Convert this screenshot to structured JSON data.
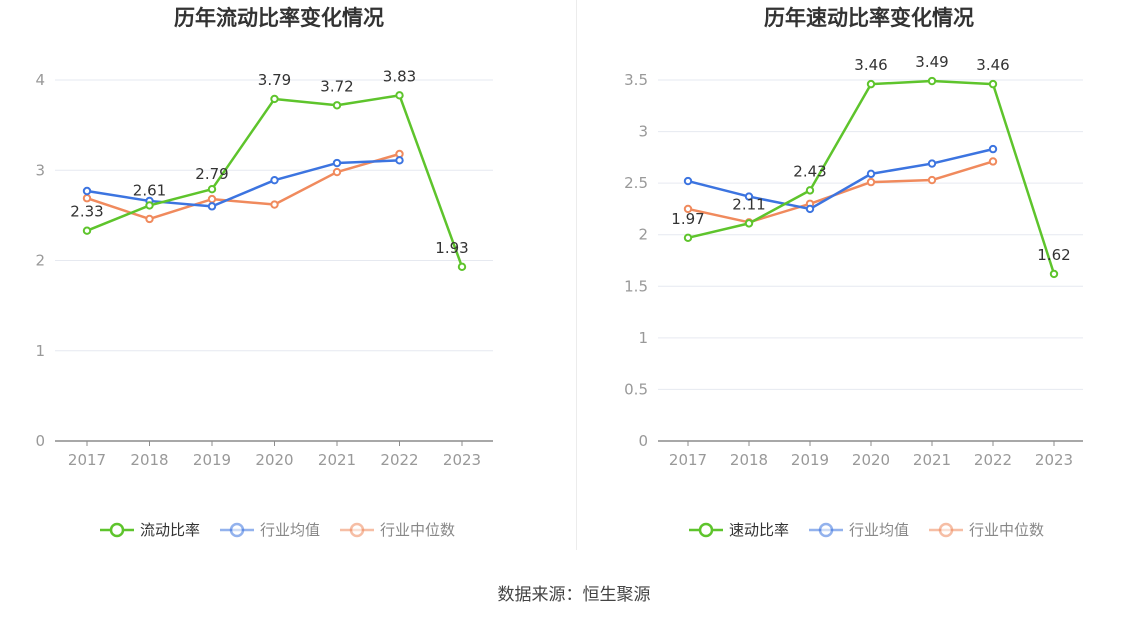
{
  "source": "数据来源：恒生聚源",
  "colors": {
    "main": "#5ec42c",
    "avg": "#3c74e0",
    "median": "#f08a5d",
    "grid": "#e6e9f0",
    "axis": "#8c8c8c",
    "tick": "#999999",
    "label": "#333333"
  },
  "chart_data": [
    {
      "type": "line",
      "title": "历年流动比率变化情况",
      "categories": [
        "2017",
        "2018",
        "2019",
        "2020",
        "2021",
        "2022",
        "2023"
      ],
      "yticks": [
        "0",
        "1",
        "2",
        "3",
        "4"
      ],
      "ylim": [
        0,
        4
      ],
      "grid": true,
      "legend_position": "bottom",
      "series": [
        {
          "name": "流动比率",
          "values": [
            2.33,
            2.61,
            2.79,
            3.79,
            3.72,
            3.83,
            1.93
          ],
          "labels": [
            "2.33",
            "2.61",
            "2.79",
            "3.79",
            "3.72",
            "3.83",
            "1.93"
          ],
          "color": "#5ec42c",
          "labeled": true
        },
        {
          "name": "行业均值",
          "values": [
            2.77,
            2.66,
            2.6,
            2.89,
            3.08,
            3.11,
            null
          ],
          "color": "#3c74e0",
          "labeled": false
        },
        {
          "name": "行业中位数",
          "values": [
            2.69,
            2.46,
            2.68,
            2.62,
            2.98,
            3.18,
            null
          ],
          "color": "#f08a5d",
          "labeled": false
        }
      ]
    },
    {
      "type": "line",
      "title": "历年速动比率变化情况",
      "categories": [
        "2017",
        "2018",
        "2019",
        "2020",
        "2021",
        "2022",
        "2023"
      ],
      "yticks": [
        "0",
        "0.5",
        "1",
        "1.5",
        "2",
        "2.5",
        "3",
        "3.5"
      ],
      "ylim": [
        0,
        3.5
      ],
      "grid": true,
      "legend_position": "bottom",
      "series": [
        {
          "name": "速动比率",
          "values": [
            1.97,
            2.11,
            2.43,
            3.46,
            3.49,
            3.46,
            1.62
          ],
          "labels": [
            "1.97",
            "2.11",
            "2.43",
            "3.46",
            "3.49",
            "3.46",
            "1.62"
          ],
          "color": "#5ec42c",
          "labeled": true
        },
        {
          "name": "行业均值",
          "values": [
            2.52,
            2.37,
            2.25,
            2.59,
            2.69,
            2.83,
            null
          ],
          "color": "#3c74e0",
          "labeled": false
        },
        {
          "name": "行业中位数",
          "values": [
            2.25,
            2.12,
            2.3,
            2.51,
            2.53,
            2.71,
            null
          ],
          "color": "#f08a5d",
          "labeled": false
        }
      ]
    }
  ]
}
